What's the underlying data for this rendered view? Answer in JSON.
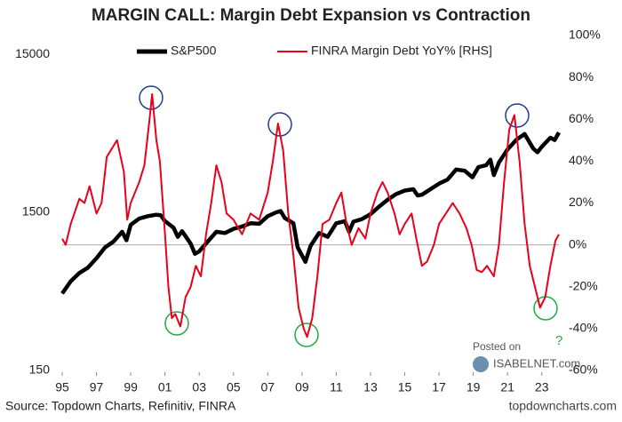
{
  "chart_data": {
    "type": "line",
    "title": "MARGIN CALL: Margin Debt Expansion vs Contraction",
    "source": "Source: Topdown Charts, Refinitiv, FINRA",
    "credit": "topdowncharts.com",
    "watermark": [
      "Posted on",
      "ISABELNET.com"
    ],
    "annotation": "?",
    "xlim": [
      1995,
      2024
    ],
    "xticks": [
      {
        "value": 1995,
        "label": "95"
      },
      {
        "value": 1997,
        "label": "97"
      },
      {
        "value": 1999,
        "label": "99"
      },
      {
        "value": 2001,
        "label": "01"
      },
      {
        "value": 2003,
        "label": "03"
      },
      {
        "value": 2005,
        "label": "05"
      },
      {
        "value": 2007,
        "label": "07"
      },
      {
        "value": 2009,
        "label": "09"
      },
      {
        "value": 2011,
        "label": "11"
      },
      {
        "value": 2013,
        "label": "13"
      },
      {
        "value": 2015,
        "label": "15"
      },
      {
        "value": 2017,
        "label": "17"
      },
      {
        "value": 2019,
        "label": "19"
      },
      {
        "value": 2021,
        "label": "21"
      },
      {
        "value": 2023,
        "label": "23"
      }
    ],
    "ylim": [
      150,
      19700
    ],
    "yscale": "log",
    "yticks": [
      150,
      1500,
      15000
    ],
    "y2lim": [
      -60,
      100
    ],
    "y2ticks": [
      {
        "value": -60,
        "label": "-60%"
      },
      {
        "value": -40,
        "label": "-40%"
      },
      {
        "value": -20,
        "label": "-20%"
      },
      {
        "value": 0,
        "label": "0%"
      },
      {
        "value": 20,
        "label": "20%"
      },
      {
        "value": 40,
        "label": "40%"
      },
      {
        "value": 60,
        "label": "60%"
      },
      {
        "value": 80,
        "label": "80%"
      },
      {
        "value": 100,
        "label": "100%"
      }
    ],
    "zero_line": true,
    "legend": "top",
    "series": [
      {
        "name": "S&P500",
        "color": "#000000",
        "x": [
          1995,
          1995.5,
          1996,
          1996.5,
          1997,
          1997.5,
          1998,
          1998.5,
          1998.75,
          1999,
          1999.5,
          2000,
          2000.5,
          2000.75,
          2001,
          2001.5,
          2001.75,
          2002,
          2002.5,
          2002.75,
          2003,
          2003.5,
          2004,
          2004.5,
          2005,
          2005.5,
          2006,
          2006.5,
          2007,
          2007.5,
          2007.75,
          2008,
          2008.5,
          2008.75,
          2009.2,
          2009.5,
          2010,
          2010.5,
          2011,
          2011.5,
          2011.75,
          2012,
          2012.5,
          2013,
          2013.5,
          2014,
          2014.5,
          2015,
          2015.5,
          2015.75,
          2016,
          2016.5,
          2017,
          2017.5,
          2018,
          2018.5,
          2018.95,
          2019.3,
          2019.75,
          2020,
          2020.2,
          2020.5,
          2021,
          2021.5,
          2022,
          2022.5,
          2022.75,
          2023,
          2023.5,
          2023.75,
          2024
        ],
        "values": [
          460,
          550,
          620,
          670,
          770,
          900,
          980,
          1130,
          1000,
          1250,
          1370,
          1420,
          1450,
          1440,
          1320,
          1200,
          1050,
          1140,
          950,
          820,
          850,
          980,
          1130,
          1110,
          1180,
          1220,
          1280,
          1270,
          1420,
          1500,
          1530,
          1380,
          1280,
          900,
          730,
          920,
          1110,
          1050,
          1280,
          1320,
          1130,
          1310,
          1360,
          1460,
          1630,
          1800,
          1960,
          2060,
          2100,
          1920,
          1940,
          2100,
          2280,
          2420,
          2800,
          2750,
          2500,
          2900,
          2980,
          3230,
          2580,
          3100,
          3750,
          4300,
          4700,
          3800,
          3600,
          3900,
          4450,
          4300,
          4800
        ]
      },
      {
        "name": "FINRA Margin Debt YoY% [RHS]",
        "color": "#e8001c",
        "axis": "y2",
        "x": [
          1995,
          1995.2,
          1995.5,
          1996,
          1996.3,
          1996.6,
          1997,
          1997.3,
          1997.6,
          1998.2,
          1998.6,
          1998.8,
          1999,
          1999.5,
          1999.8,
          2000.1,
          2000.25,
          2000.5,
          2000.7,
          2001,
          2001.2,
          2001.4,
          2001.6,
          2001.9,
          2002.2,
          2002.5,
          2002.8,
          2003.1,
          2003.4,
          2003.7,
          2004,
          2004.3,
          2004.6,
          2005,
          2005.5,
          2006,
          2006.5,
          2007,
          2007.3,
          2007.6,
          2007.9,
          2008.2,
          2008.5,
          2008.8,
          2009.1,
          2009.3,
          2009.6,
          2009.9,
          2010.2,
          2010.6,
          2011,
          2011.3,
          2011.6,
          2011.9,
          2012.3,
          2012.7,
          2013,
          2013.4,
          2013.7,
          2014,
          2014.4,
          2014.7,
          2015,
          2015.4,
          2015.7,
          2016,
          2016.3,
          2016.7,
          2017,
          2017.4,
          2017.8,
          2018.2,
          2018.6,
          2018.9,
          2019.2,
          2019.5,
          2019.8,
          2020.2,
          2020.5,
          2020.8,
          2021.1,
          2021.4,
          2021.7,
          2022,
          2022.3,
          2022.6,
          2022.9,
          2023.2,
          2023.5,
          2023.8,
          2024
        ],
        "values": [
          3,
          0,
          10,
          22,
          20,
          28,
          15,
          20,
          42,
          50,
          35,
          12,
          20,
          30,
          38,
          60,
          72,
          50,
          40,
          5,
          -20,
          -35,
          -33,
          -39,
          -25,
          -20,
          -10,
          -15,
          5,
          20,
          38,
          30,
          15,
          12,
          5,
          15,
          12,
          25,
          40,
          58,
          45,
          15,
          -5,
          -30,
          -40,
          -44,
          -35,
          -15,
          10,
          12,
          20,
          25,
          10,
          0,
          8,
          3,
          15,
          25,
          30,
          25,
          15,
          5,
          10,
          15,
          2,
          -10,
          -8,
          0,
          10,
          15,
          20,
          15,
          8,
          0,
          -12,
          -13,
          -10,
          -15,
          0,
          30,
          55,
          62,
          40,
          10,
          -10,
          -20,
          -30,
          -25,
          -10,
          2,
          5
        ]
      }
    ]
  }
}
